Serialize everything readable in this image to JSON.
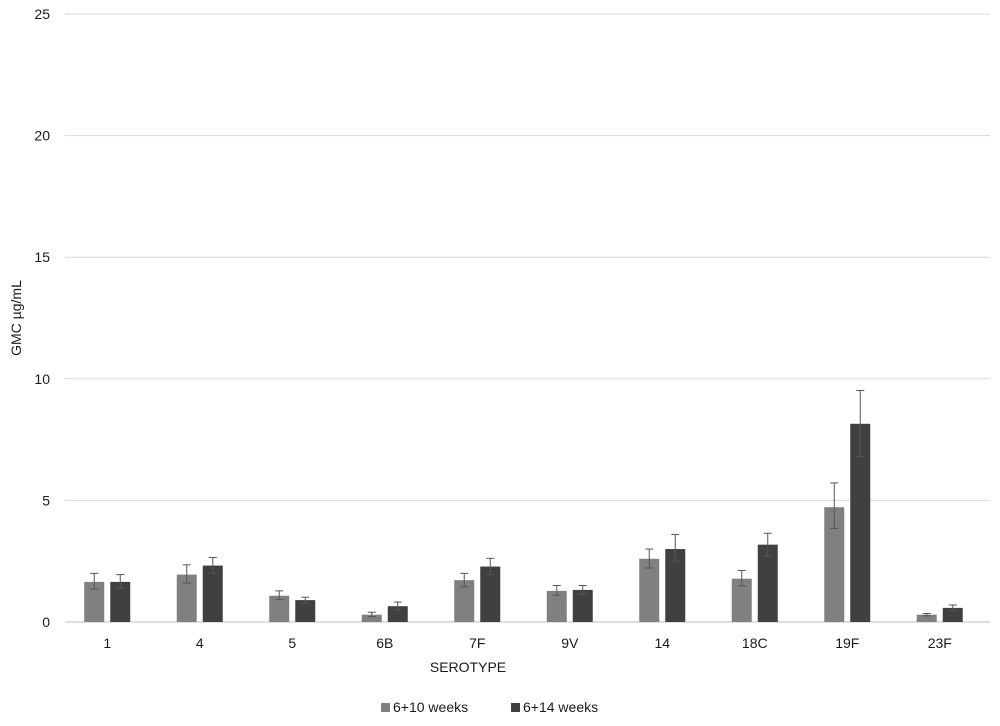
{
  "chart_data": {
    "type": "bar",
    "title": "",
    "xlabel": "SEROTYPE",
    "ylabel": "GMC µg/mL",
    "ylim": [
      0,
      25
    ],
    "yticks": [
      0,
      5,
      10,
      15,
      20,
      25
    ],
    "grid": true,
    "legend_position": "bottom",
    "categories": [
      "1",
      "4",
      "5",
      "6B",
      "7F",
      "9V",
      "14",
      "18C",
      "19F",
      "23F"
    ],
    "series": [
      {
        "name": "6+10 weeks",
        "color": "#808080",
        "values": [
          1.65,
          1.95,
          1.08,
          0.3,
          1.72,
          1.28,
          2.6,
          1.78,
          4.72,
          0.3
        ],
        "error_low": [
          1.35,
          1.6,
          0.92,
          0.22,
          1.45,
          1.1,
          2.22,
          1.48,
          3.85,
          0.25
        ],
        "error_high": [
          2.0,
          2.35,
          1.28,
          0.4,
          2.0,
          1.5,
          3.0,
          2.12,
          5.72,
          0.35
        ]
      },
      {
        "name": "6+14 weeks",
        "color": "#404040",
        "values": [
          1.65,
          2.32,
          0.9,
          0.65,
          2.28,
          1.32,
          3.0,
          3.18,
          8.15,
          0.58
        ],
        "error_low": [
          1.4,
          2.0,
          0.78,
          0.5,
          1.95,
          1.15,
          2.5,
          2.72,
          6.8,
          0.46
        ],
        "error_high": [
          1.95,
          2.65,
          1.02,
          0.82,
          2.62,
          1.5,
          3.6,
          3.65,
          9.52,
          0.7
        ]
      }
    ]
  }
}
